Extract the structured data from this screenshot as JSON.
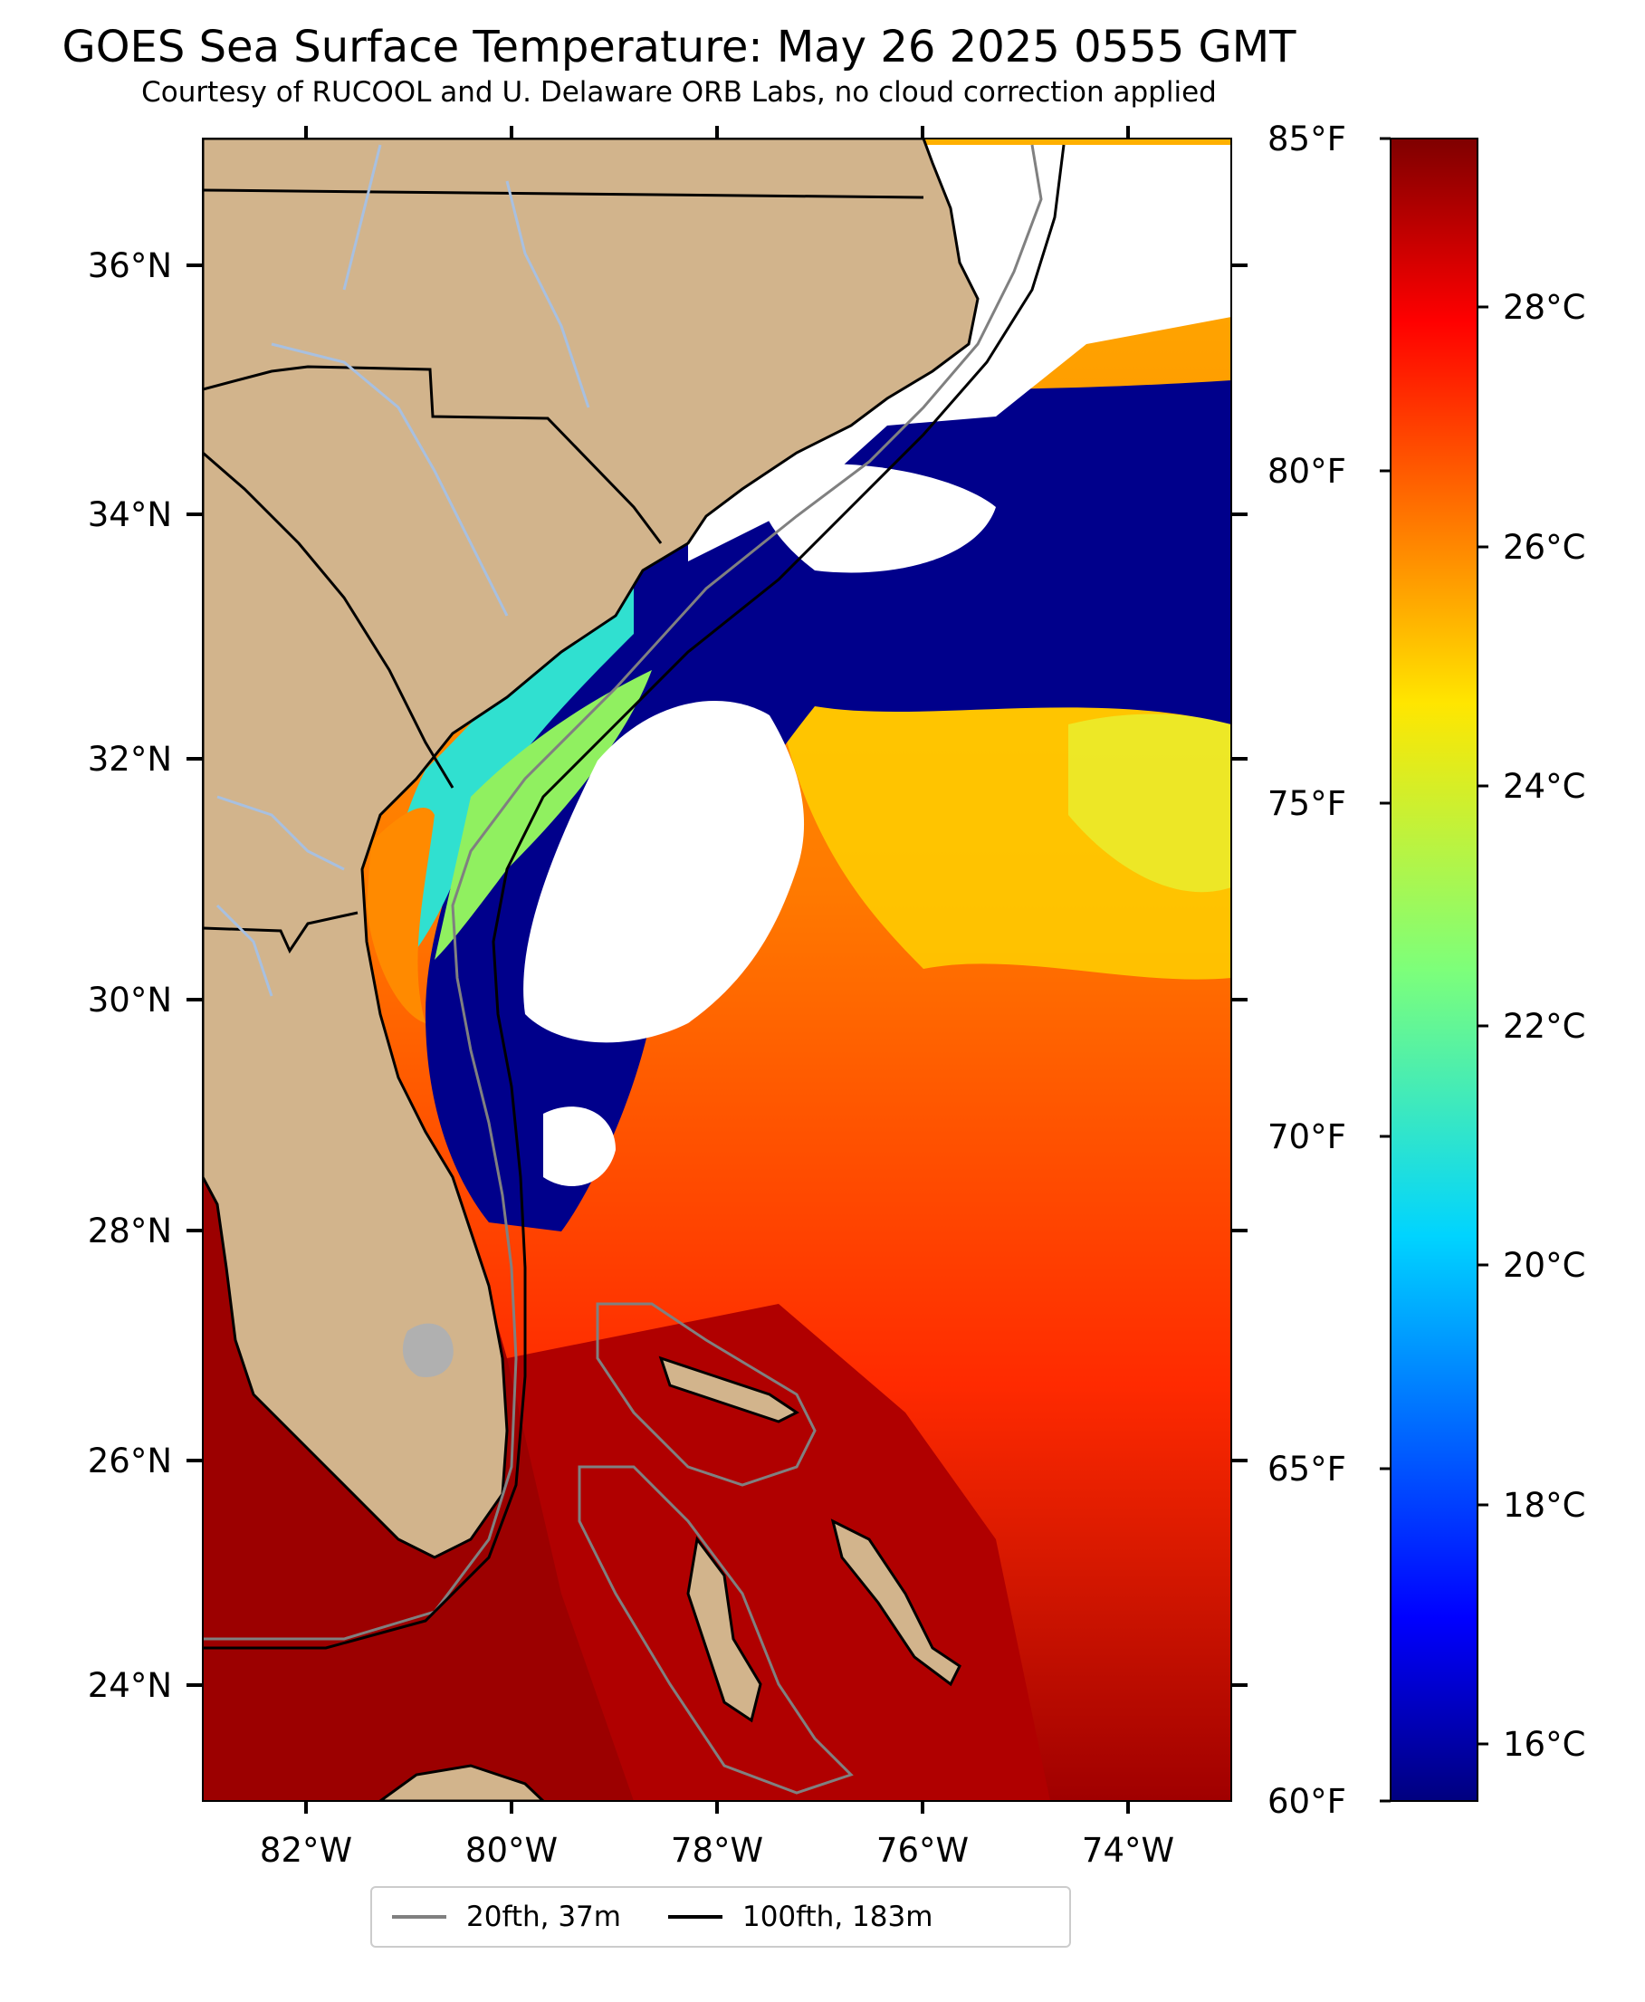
{
  "header": {
    "title": "GOES Sea Surface Temperature: May 26 2025 0555 GMT",
    "subtitle": "Courtesy of RUCOOL and U. Delaware ORB Labs, no cloud correction applied"
  },
  "map": {
    "lon_range": [
      -83,
      -73
    ],
    "lat_range": [
      23,
      37
    ],
    "x_tick_labels": [
      "82°W",
      "80°W",
      "78°W",
      "76°W",
      "74°W"
    ],
    "y_tick_labels": [
      "24°N",
      "26°N",
      "28°N",
      "30°N",
      "32°N",
      "34°N",
      "36°N"
    ],
    "land_color": "#d2b48c",
    "cloud_color": "#ffffff"
  },
  "colorbar": {
    "colormap": "jet",
    "celsius_range": [
      15.56,
      29.44
    ],
    "celsius_labels": [
      "16°C",
      "18°C",
      "20°C",
      "22°C",
      "24°C",
      "26°C",
      "28°C"
    ],
    "fahrenheit_labels": [
      "60°F",
      "65°F",
      "70°F",
      "75°F",
      "80°F",
      "85°F"
    ]
  },
  "legend": {
    "items": [
      {
        "label": "20fth, 37m",
        "color": "#808080"
      },
      {
        "label": "100fth, 183m",
        "color": "#000000"
      }
    ]
  }
}
